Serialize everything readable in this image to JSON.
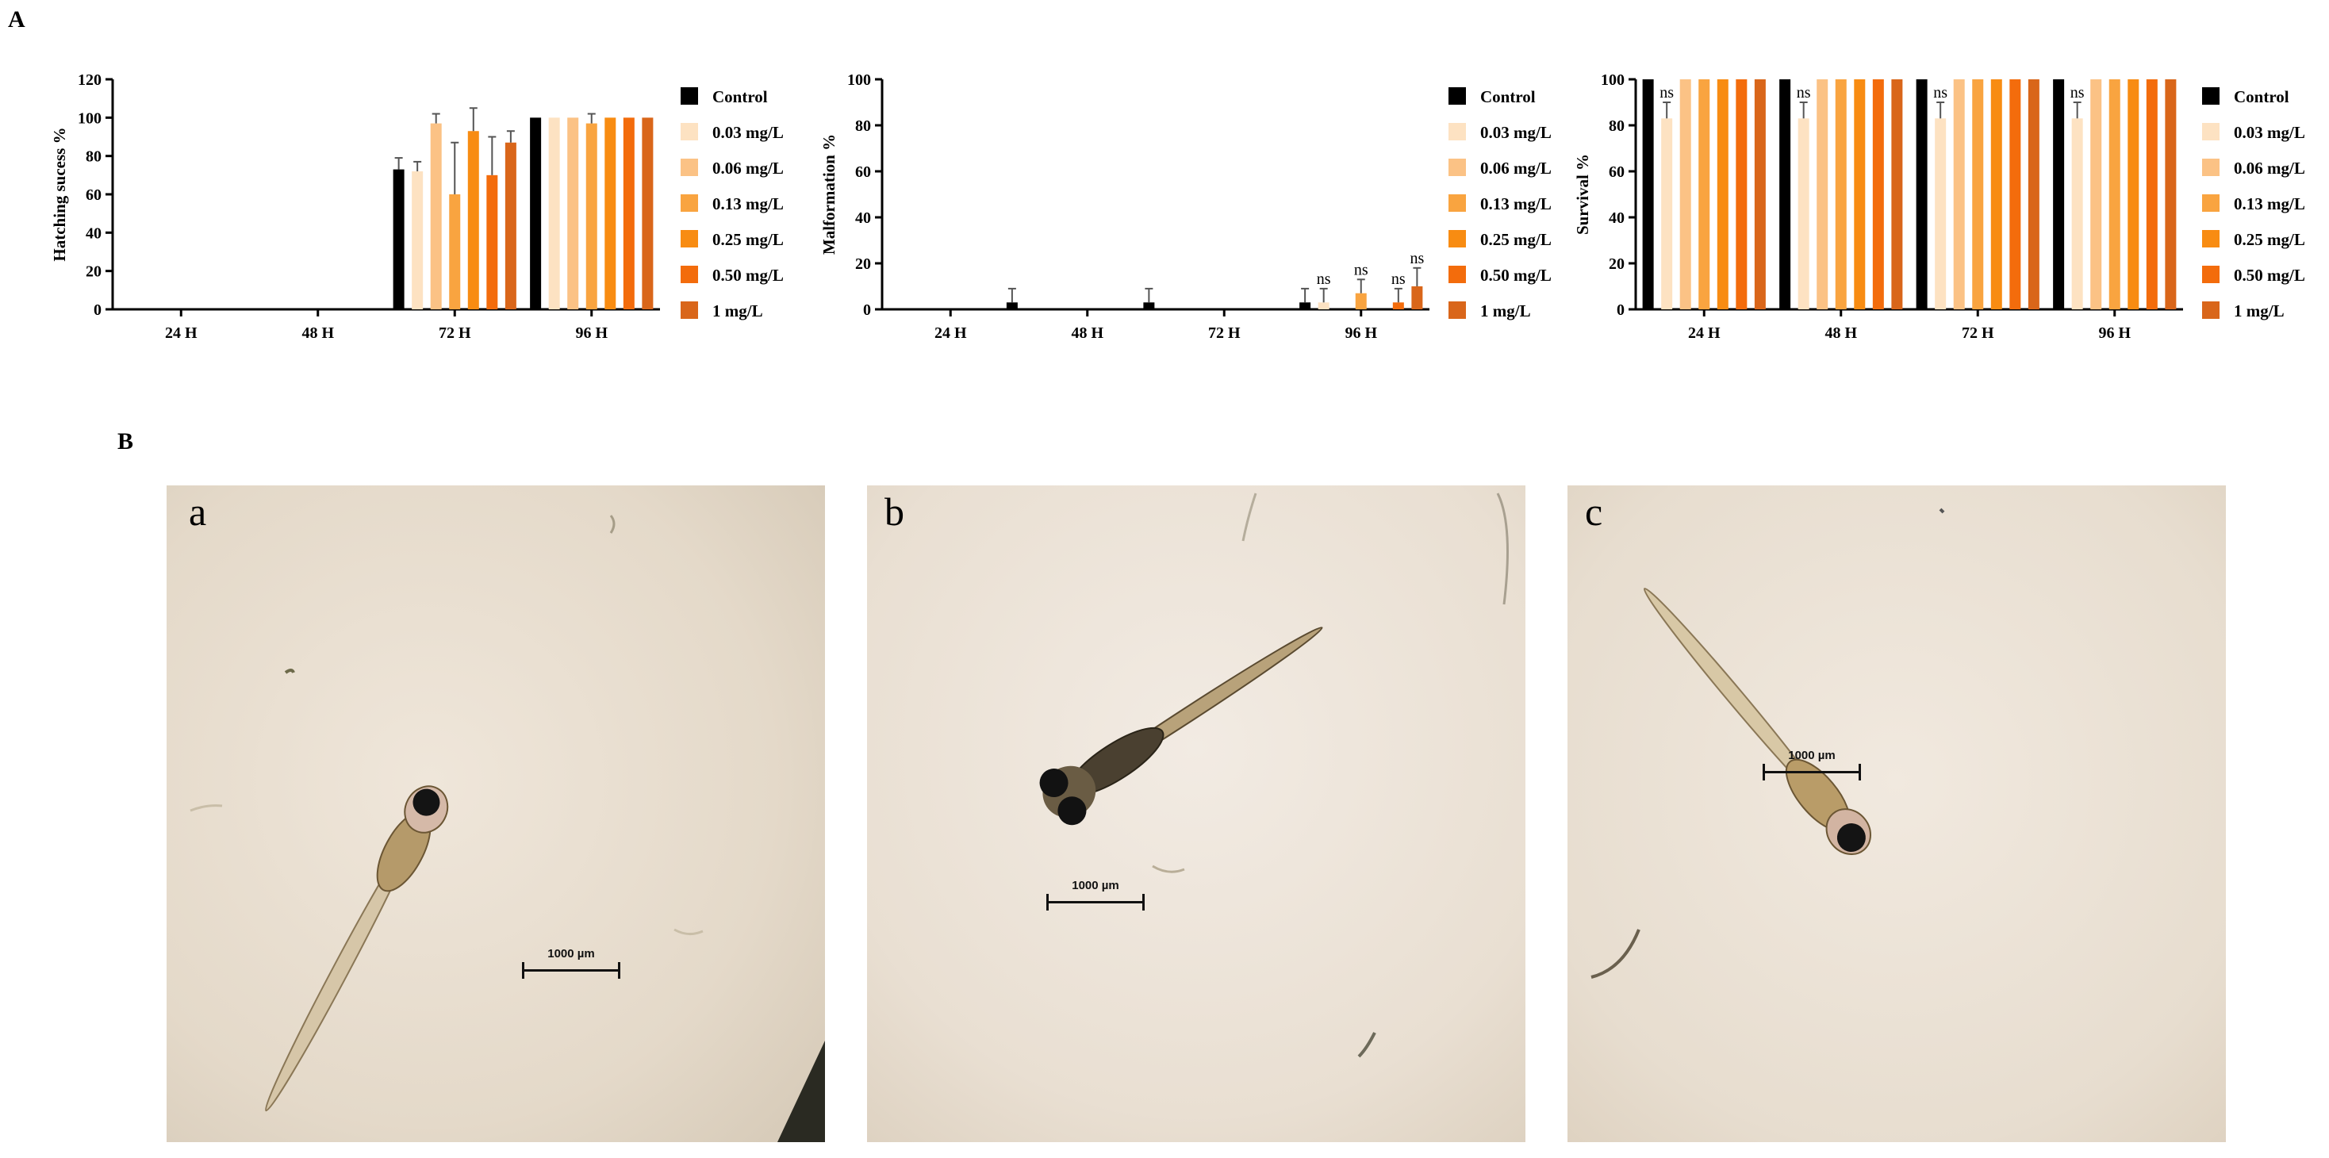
{
  "panel_labels": {
    "A": "A",
    "B": "B"
  },
  "legend_colors": {
    "Control": "#000000",
    "0.03 mg/L": "#fde2c2",
    "0.06 mg/L": "#fbc285",
    "0.13 mg/L": "#f9a440",
    "0.25 mg/L": "#f88c12",
    "0.50 mg/L": "#f36c0c",
    "1 mg/L": "#d9661a"
  },
  "chart_data": [
    {
      "type": "bar",
      "ylabel": "Hatching sucess %",
      "ylim": [
        0,
        120
      ],
      "yticks": [
        0,
        20,
        40,
        60,
        80,
        100,
        120
      ],
      "categories": [
        "24 H",
        "48 H",
        "72 H",
        "96 H"
      ],
      "legend_position": "right",
      "series": [
        {
          "name": "Control",
          "values": [
            0,
            0,
            73,
            100
          ],
          "errors": [
            0,
            0,
            6,
            0
          ]
        },
        {
          "name": "0.03 mg/L",
          "values": [
            0,
            0,
            72,
            100
          ],
          "errors": [
            0,
            0,
            5,
            0
          ]
        },
        {
          "name": "0.06 mg/L",
          "values": [
            0,
            0,
            97,
            100
          ],
          "errors": [
            0,
            0,
            5,
            0
          ]
        },
        {
          "name": "0.13 mg/L",
          "values": [
            0,
            0,
            60,
            97
          ],
          "errors": [
            0,
            0,
            27,
            5
          ]
        },
        {
          "name": "0.25 mg/L",
          "values": [
            0,
            0,
            93,
            100
          ],
          "errors": [
            0,
            0,
            12,
            0
          ]
        },
        {
          "name": "0.50 mg/L",
          "values": [
            0,
            0,
            70,
            100
          ],
          "errors": [
            0,
            0,
            20,
            0
          ]
        },
        {
          "name": "1 mg/L",
          "values": [
            0,
            0,
            87,
            100
          ],
          "errors": [
            0,
            0,
            6,
            0
          ]
        }
      ],
      "annotations": []
    },
    {
      "type": "bar",
      "ylabel": "Malformation %",
      "ylim": [
        0,
        100
      ],
      "yticks": [
        0,
        20,
        40,
        60,
        80,
        100
      ],
      "categories": [
        "24 H",
        "48 H",
        "72 H",
        "96 H"
      ],
      "legend_position": "right",
      "series": [
        {
          "name": "Control",
          "values": [
            0,
            0,
            0,
            3
          ],
          "errors": [
            0,
            0,
            0,
            6
          ]
        },
        {
          "name": "0.03 mg/L",
          "values": [
            0,
            0,
            0,
            3
          ],
          "errors": [
            0,
            0,
            0,
            6
          ]
        },
        {
          "name": "0.06 mg/L",
          "values": [
            0,
            0,
            0,
            0
          ],
          "errors": [
            0,
            0,
            0,
            0
          ]
        },
        {
          "name": "0.13 mg/L",
          "values": [
            0,
            0,
            0,
            7
          ],
          "errors": [
            0,
            0,
            0,
            6
          ]
        },
        {
          "name": "0.25 mg/L",
          "values": [
            0,
            0,
            0,
            0
          ],
          "errors": [
            0,
            0,
            0,
            0
          ]
        },
        {
          "name": "0.50 mg/L",
          "values": [
            0,
            0,
            0,
            3
          ],
          "errors": [
            0,
            0,
            0,
            6
          ]
        },
        {
          "name": "1 mg/L",
          "values": [
            0,
            0,
            0,
            10
          ],
          "errors": [
            0,
            0,
            0,
            8
          ]
        }
      ],
      "extra_bars": [
        {
          "category": "24 H",
          "between": "24 H|48 H",
          "value": 3,
          "error": 6
        },
        {
          "category": "48 H",
          "between": "48 H|72 H",
          "value": 3,
          "error": 6
        }
      ],
      "annotations": [
        {
          "category": "96 H",
          "series": "0.03 mg/L",
          "text": "ns"
        },
        {
          "category": "96 H",
          "series": "0.13 mg/L",
          "text": "ns"
        },
        {
          "category": "96 H",
          "series": "0.50 mg/L",
          "text": "ns"
        },
        {
          "category": "96 H",
          "series": "1 mg/L",
          "text": "ns"
        }
      ]
    },
    {
      "type": "bar",
      "ylabel": "Survival %",
      "ylim": [
        0,
        100
      ],
      "yticks": [
        0,
        20,
        40,
        60,
        80,
        100
      ],
      "categories": [
        "24 H",
        "48 H",
        "72 H",
        "96 H"
      ],
      "legend_position": "right",
      "series": [
        {
          "name": "Control",
          "values": [
            100,
            100,
            100,
            100
          ],
          "errors": [
            0,
            0,
            0,
            0
          ]
        },
        {
          "name": "0.03 mg/L",
          "values": [
            83,
            83,
            83,
            83
          ],
          "errors": [
            7,
            7,
            7,
            7
          ]
        },
        {
          "name": "0.06 mg/L",
          "values": [
            100,
            100,
            100,
            100
          ],
          "errors": [
            0,
            0,
            0,
            0
          ]
        },
        {
          "name": "0.13 mg/L",
          "values": [
            100,
            100,
            100,
            100
          ],
          "errors": [
            0,
            0,
            0,
            0
          ]
        },
        {
          "name": "0.25 mg/L",
          "values": [
            100,
            100,
            100,
            100
          ],
          "errors": [
            0,
            0,
            0,
            0
          ]
        },
        {
          "name": "0.50 mg/L",
          "values": [
            100,
            100,
            100,
            100
          ],
          "errors": [
            0,
            0,
            0,
            0
          ]
        },
        {
          "name": "1 mg/L",
          "values": [
            100,
            100,
            100,
            100
          ],
          "errors": [
            0,
            0,
            0,
            0
          ]
        }
      ],
      "annotations": [
        {
          "category": "24 H",
          "series": "0.03 mg/L",
          "text": "ns"
        },
        {
          "category": "48 H",
          "series": "0.03 mg/L",
          "text": "ns"
        },
        {
          "category": "72 H",
          "series": "0.03 mg/L",
          "text": "ns"
        },
        {
          "category": "96 H",
          "series": "0.03 mg/L",
          "text": "ns"
        }
      ]
    }
  ],
  "photos": [
    {
      "letter": "a",
      "scale_text": "1000 µm"
    },
    {
      "letter": "b",
      "scale_text": "1000 µm"
    },
    {
      "letter": "c",
      "scale_text": "1000 µm"
    }
  ]
}
